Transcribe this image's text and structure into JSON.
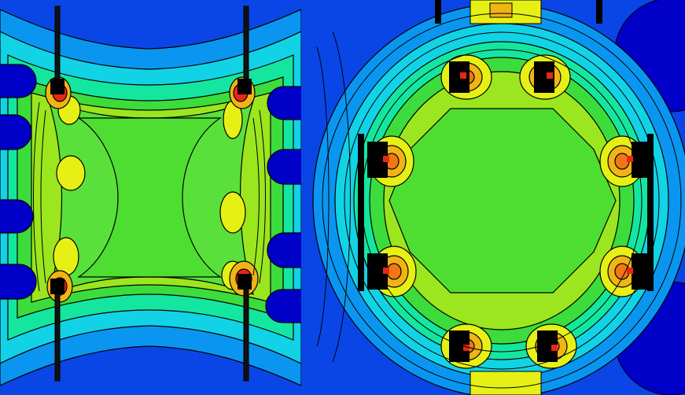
{
  "figure": {
    "panels": [
      {
        "id": "left",
        "kind": "field-contour-plot",
        "annotation_text": ""
      },
      {
        "id": "right",
        "kind": "field-contour-plot",
        "annotation_text": ""
      }
    ],
    "colormap": [
      "#0000c8",
      "#0a46e6",
      "#0a96f0",
      "#12d2e6",
      "#14e6a0",
      "#3cdc3c",
      "#9be61e",
      "#e6f014",
      "#f0b414",
      "#f07814",
      "#e62814"
    ],
    "contour_line_color": "#000000",
    "background_color": "#0a46e6"
  }
}
